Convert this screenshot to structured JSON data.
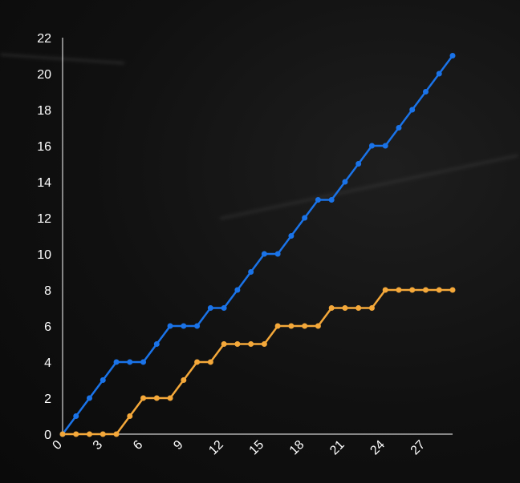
{
  "chart_data": {
    "type": "line",
    "x": [
      0,
      1,
      2,
      3,
      4,
      5,
      6,
      7,
      8,
      9,
      10,
      11,
      12,
      13,
      14,
      15,
      16,
      17,
      18,
      19,
      20,
      21,
      22,
      23,
      24,
      25,
      26,
      27,
      28,
      29
    ],
    "xticks": [
      0,
      3,
      6,
      9,
      12,
      15,
      18,
      21,
      24,
      27
    ],
    "yticks": [
      0,
      2,
      4,
      6,
      8,
      10,
      12,
      14,
      16,
      18,
      20,
      22
    ],
    "xlim": [
      0,
      29
    ],
    "ylim": [
      0,
      22
    ],
    "title": "",
    "xlabel": "",
    "ylabel": "",
    "grid": false,
    "series": [
      {
        "color": "#1a73e8",
        "values": [
          0,
          1,
          2,
          3,
          4,
          4,
          4,
          5,
          6,
          6,
          6,
          7,
          7,
          8,
          9,
          10,
          10,
          11,
          12,
          13,
          13,
          14,
          15,
          16,
          16,
          17,
          18,
          19,
          20,
          21
        ]
      },
      {
        "color": "#f4a83a",
        "values": [
          0,
          0,
          0,
          0,
          0,
          1,
          2,
          2,
          2,
          3,
          4,
          4,
          5,
          5,
          5,
          5,
          6,
          6,
          6,
          6,
          7,
          7,
          7,
          7,
          8,
          8,
          8,
          8,
          8,
          8
        ]
      }
    ]
  }
}
